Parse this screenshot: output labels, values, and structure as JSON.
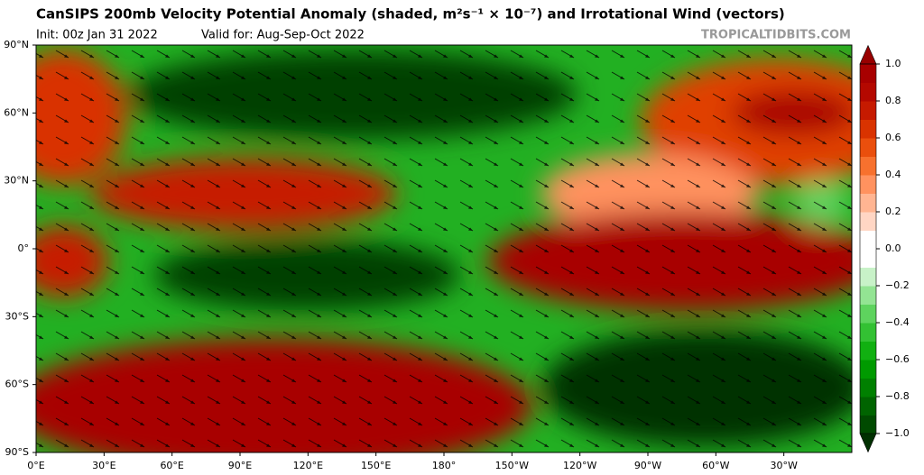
{
  "header": {
    "title": "CanSIPS 200mb Velocity Potential Anomaly (shaded, m²s⁻¹ × 10⁻⁷) and Irrotational Wind (vectors)",
    "init": "Init: 00z Jan 31 2022",
    "valid": "Valid for: Aug-Sep-Oct 2022",
    "source": "TROPICALTIDBITS.COM"
  },
  "map": {
    "lat_labels": [
      "90°N",
      "60°N",
      "30°N",
      "0°",
      "30°S",
      "60°S",
      "90°S"
    ],
    "lon_labels": [
      "0°E",
      "30°E",
      "60°E",
      "90°E",
      "120°E",
      "150°E",
      "180°",
      "150°W",
      "120°W",
      "90°W",
      "60°W",
      "30°W"
    ]
  },
  "colorbar": {
    "lim": [
      -1,
      1
    ],
    "colors": [
      "#003000",
      "#004a00",
      "#006400",
      "#008000",
      "#009a00",
      "#11b011",
      "#33c133",
      "#5ed35e",
      "#93e493",
      "#c8f2c8",
      "#ffffff",
      "#ffffff",
      "#ffd6c4",
      "#ffb592",
      "#ff925f",
      "#f7712e",
      "#ea4f0d",
      "#d93300",
      "#c61a00",
      "#b40800",
      "#a80000",
      "#980000"
    ],
    "ticks": [
      {
        "value": 1,
        "label": "1.0"
      },
      {
        "value": 0.8,
        "label": "0.8"
      },
      {
        "value": 0.6,
        "label": "0.6"
      },
      {
        "value": 0.4,
        "label": "0.4"
      },
      {
        "value": 0.2,
        "label": "0.2"
      },
      {
        "value": 0,
        "label": "0.0"
      },
      {
        "value": -0.2,
        "label": "−0.2"
      },
      {
        "value": -0.4,
        "label": "−0.4"
      },
      {
        "value": -0.6,
        "label": "−0.6"
      },
      {
        "value": -0.8,
        "label": "−0.8"
      },
      {
        "value": -1,
        "label": "−1.0"
      }
    ]
  }
}
